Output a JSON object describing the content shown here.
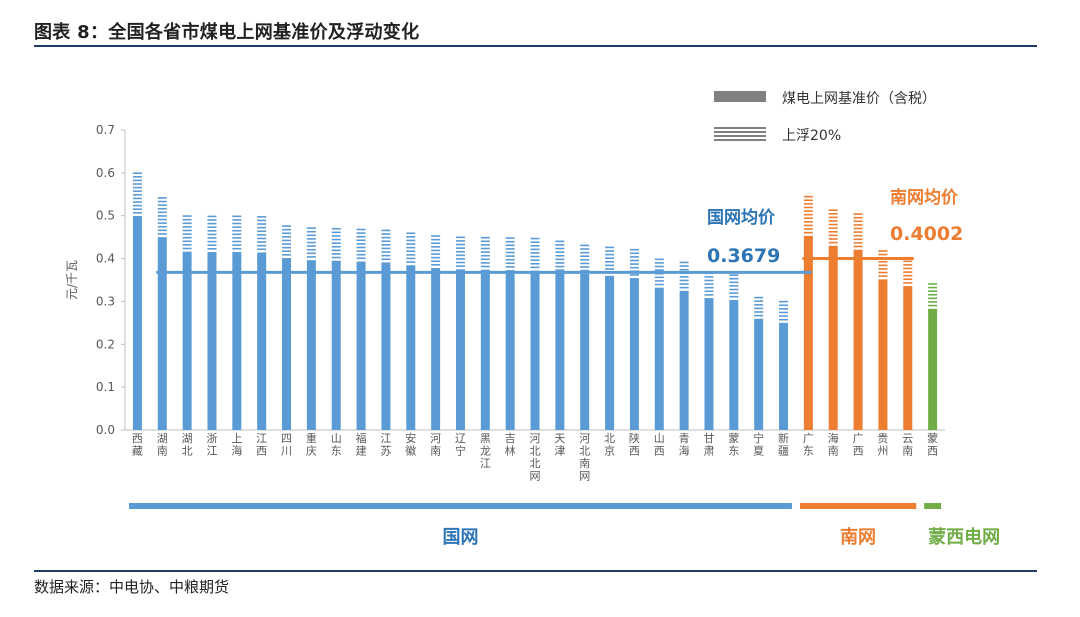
{
  "header": {
    "title": "图表 8：全国各省市煤电上网基准价及浮动变化"
  },
  "footer": {
    "source": "数据来源：中电协、中粮期货"
  },
  "chart_data": {
    "type": "bar",
    "ylabel": "元/千瓦",
    "ylim": [
      0,
      0.7
    ],
    "yticks": [
      "0.0",
      "0.1",
      "0.2",
      "0.3",
      "0.4",
      "0.5",
      "0.6",
      "0.7"
    ],
    "grid": false,
    "legend_position": "top-right",
    "legend": {
      "base": "煤电上网基准价（含税）",
      "float": "上浮20%"
    },
    "categories": [
      "西藏",
      "湖南",
      "湖北",
      "浙江",
      "上海",
      "江西",
      "四川",
      "重庆",
      "山东",
      "福建",
      "江苏",
      "安徽",
      "河南",
      "辽宁",
      "黑龙江",
      "吉林",
      "河北北网",
      "天津",
      "河北南网",
      "北京",
      "陕西",
      "山西",
      "青海",
      "甘肃",
      "蒙东",
      "宁夏",
      "新疆",
      "广东",
      "海南",
      "广西",
      "贵州",
      "云南",
      "蒙西"
    ],
    "groups": [
      "国网",
      "国网",
      "国网",
      "国网",
      "国网",
      "国网",
      "国网",
      "国网",
      "国网",
      "国网",
      "国网",
      "国网",
      "国网",
      "国网",
      "国网",
      "国网",
      "国网",
      "国网",
      "国网",
      "国网",
      "国网",
      "国网",
      "国网",
      "国网",
      "国网",
      "国网",
      "国网",
      "南网",
      "南网",
      "南网",
      "南网",
      "南网",
      "蒙西电网"
    ],
    "series": [
      {
        "key": "base",
        "values": [
          0.4993,
          0.45,
          0.4161,
          0.4153,
          0.4155,
          0.4143,
          0.4012,
          0.3964,
          0.3949,
          0.3932,
          0.391,
          0.3844,
          0.3779,
          0.3749,
          0.374,
          0.3731,
          0.372,
          0.3655,
          0.3644,
          0.3598,
          0.3545,
          0.332,
          0.3247,
          0.3078,
          0.3035,
          0.2595,
          0.25,
          0.453,
          0.4298,
          0.4207,
          0.3515,
          0.3358,
          0.2829
        ]
      },
      {
        "key": "float",
        "values": [
          0.5992,
          0.54,
          0.4993,
          0.4984,
          0.4986,
          0.4972,
          0.4814,
          0.4757,
          0.4739,
          0.4718,
          0.4692,
          0.4613,
          0.4535,
          0.4499,
          0.4488,
          0.4477,
          0.4464,
          0.4386,
          0.4373,
          0.4318,
          0.4254,
          0.3984,
          0.3896,
          0.3694,
          0.3642,
          0.3114,
          0.3,
          0.5436,
          0.5158,
          0.5048,
          0.4218,
          0.403,
          0.3395
        ]
      }
    ],
    "averages": [
      {
        "label": "国网均价",
        "value": 0.3679,
        "value_text": "0.3679"
      },
      {
        "label": "南网均价",
        "value": 0.4002,
        "value_text": "0.4002"
      }
    ],
    "group_labels": [
      "国网",
      "南网",
      "蒙西电网"
    ],
    "colors": {
      "national": "#5b9bd5",
      "southern": "#ed7d31",
      "mengxi": "#70ad47",
      "national_text": "#2e75b6",
      "axis": "#bfbfbf",
      "legend": "#7f7f7f",
      "tick_text": "#595959"
    }
  }
}
